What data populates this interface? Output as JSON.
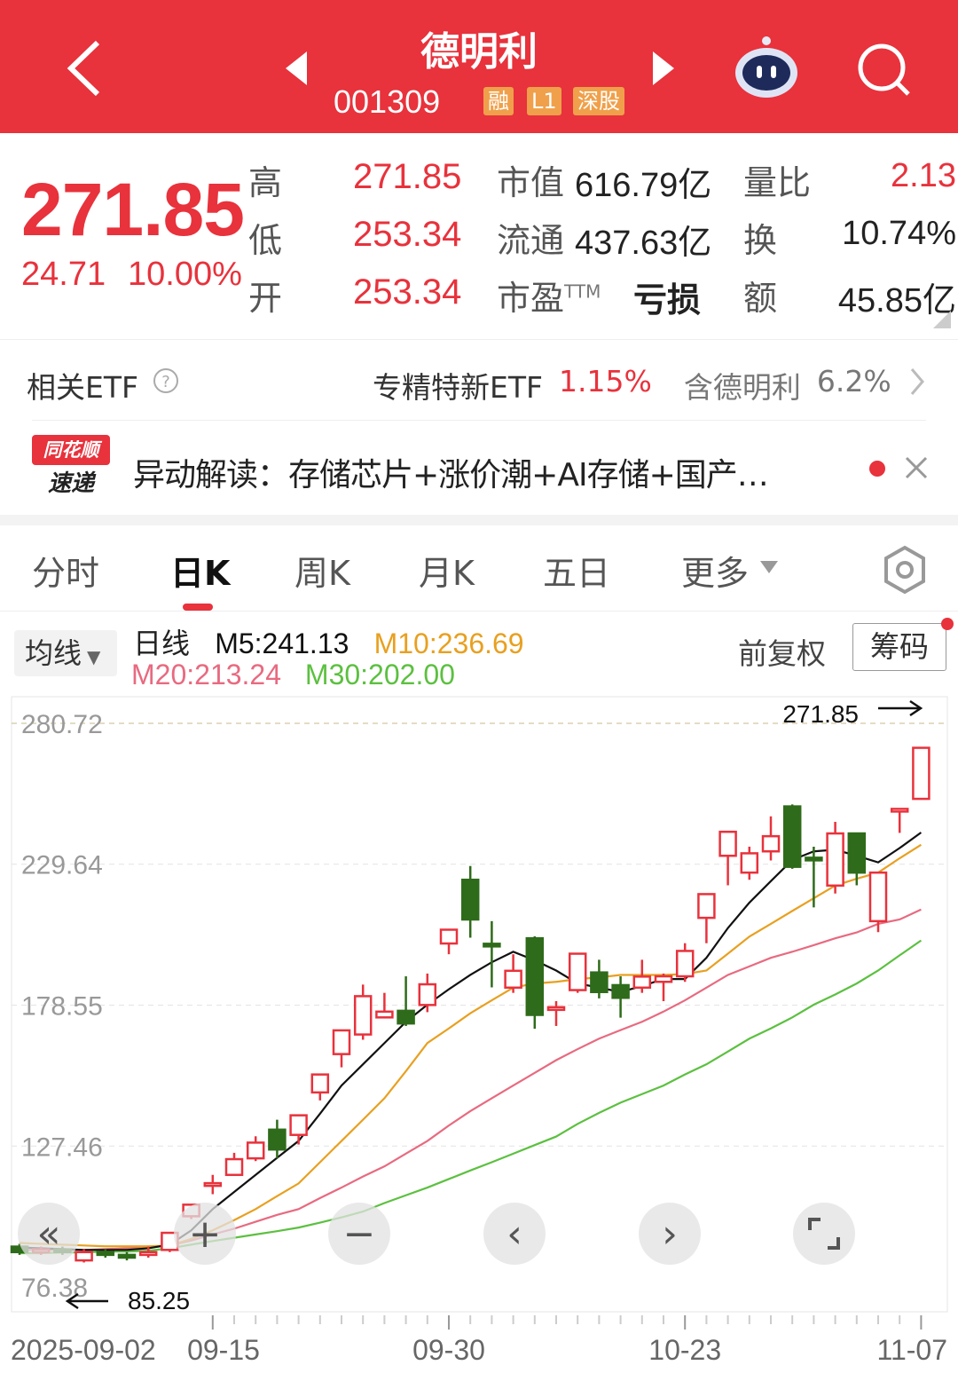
{
  "header": {
    "title": "德明利",
    "code": "001309",
    "tags": [
      "融",
      "L1",
      "深股"
    ],
    "back_icon": "chevron-left-icon",
    "prev_icon": "triangle-left-icon",
    "next_icon": "triangle-right-icon",
    "assistant_icon": "robot-icon",
    "search_icon": "search-icon"
  },
  "quote": {
    "price": "271.85",
    "change": "24.71",
    "change_pct": "10.00%",
    "rows": [
      {
        "label": "高",
        "value": "271.85",
        "k2": "市值",
        "v2": "616.79亿",
        "k3": "量比",
        "v3": "2.13"
      },
      {
        "label": "低",
        "value": "253.34",
        "k2": "流通",
        "v2": "437.63亿",
        "k3": "换",
        "v3": "10.74%"
      },
      {
        "label": "开",
        "value": "253.34",
        "k2": "市盈",
        "k2sup": "TTM",
        "v2": "亏损",
        "k3": "额",
        "v3": "45.85亿"
      }
    ]
  },
  "etf": {
    "label": "相关ETF",
    "name": "专精特新ETF",
    "pct": "1.15%",
    "contains": "含德明利",
    "weight": "6.2%"
  },
  "news": {
    "logo_top": "同花顺",
    "logo_bottom": "速递",
    "text": "异动解读：存储芯片+涨价潮+AI存储+国产…"
  },
  "tabs": [
    "分时",
    "日K",
    "周K",
    "月K",
    "五日",
    "更多"
  ],
  "active_tab": 1,
  "indicators": {
    "ma_select": "均线",
    "line_type": "日线",
    "m5": "M5:241.13",
    "m10": "M10:236.69",
    "m20": "M20:213.24",
    "m30": "M30:202.00",
    "adjust": "前复权",
    "chips": "筹码"
  },
  "colors": {
    "brand": "#e8323c",
    "up": "#e8323c",
    "down": "#2e6b1a",
    "m5": "#111111",
    "m10": "#e8a020",
    "m20": "#e86a80",
    "m30": "#5cc040"
  },
  "chart_data": {
    "type": "candlestick",
    "ylim": [
      76.38,
      280.72
    ],
    "y_ticks": [
      "280.72",
      "229.64",
      "178.55",
      "127.46",
      "76.38"
    ],
    "x_ticks": [
      {
        "label": "2025-09-02",
        "index": 0
      },
      {
        "label": "09-15",
        "index": 9
      },
      {
        "label": "09-30",
        "index": 20
      },
      {
        "label": "10-23",
        "index": 31
      },
      {
        "label": "11-07",
        "index": 42
      }
    ],
    "max_label": "271.85",
    "min_label": "85.25",
    "ohlc": [
      [
        91,
        92,
        88,
        89
      ],
      [
        89,
        91,
        88,
        90
      ],
      [
        90,
        91,
        88,
        89
      ],
      [
        86,
        90,
        85.25,
        89
      ],
      [
        89,
        90,
        87,
        88
      ],
      [
        88,
        89,
        86,
        87
      ],
      [
        88,
        91,
        87,
        89
      ],
      [
        89.8,
        96,
        89,
        96
      ],
      [
        102,
        106.2,
        101,
        106.2
      ],
      [
        114,
        117,
        110,
        114
      ],
      [
        117,
        125,
        117,
        122.7
      ],
      [
        123,
        131,
        122,
        128.7
      ],
      [
        133.4,
        137,
        123,
        126.2
      ],
      [
        131.5,
        138.6,
        128,
        138.6
      ],
      [
        146.9,
        153.4,
        144,
        153.4
      ],
      [
        160.8,
        169.4,
        156,
        169.4
      ],
      [
        167.9,
        186,
        166,
        181.8
      ],
      [
        174.1,
        183,
        174,
        176.2
      ],
      [
        176.5,
        189,
        171,
        171.9
      ],
      [
        178.6,
        190,
        176,
        186.1
      ],
      [
        200.9,
        205.9,
        197,
        205.9
      ],
      [
        224,
        229,
        203,
        209.6
      ],
      [
        200.8,
        209,
        185,
        200
      ],
      [
        184.9,
        197,
        183,
        191
      ],
      [
        202.8,
        203.5,
        170,
        175
      ],
      [
        177.8,
        180,
        171,
        177.8
      ],
      [
        184,
        197.2,
        183,
        197.2
      ],
      [
        190.4,
        195,
        181,
        183.3
      ],
      [
        185.8,
        189,
        174,
        181.2
      ],
      [
        184.9,
        195,
        183,
        188.9
      ],
      [
        187,
        190,
        180,
        189
      ],
      [
        189,
        201,
        187,
        198.2
      ],
      [
        210.2,
        218.8,
        201,
        218.8
      ],
      [
        232.7,
        241.4,
        222,
        241.4
      ],
      [
        226.6,
        236,
        224,
        233.6
      ],
      [
        234.3,
        247,
        231,
        239.8
      ],
      [
        250.6,
        251.3,
        228,
        228.7
      ],
      [
        232,
        236,
        214,
        231.5
      ],
      [
        221.9,
        245,
        219,
        240.8
      ],
      [
        240.8,
        241,
        222,
        226.6
      ],
      [
        209,
        226.6,
        205,
        226.6
      ],
      [
        248.8,
        249.7,
        241,
        249.7
      ],
      [
        253.34,
        271.85,
        253.34,
        271.85
      ]
    ],
    "ma5": [
      90.7,
      90.4,
      90.1,
      89.8,
      89.8,
      89.8,
      90.4,
      91.7,
      96.9,
      104.6,
      110.8,
      117,
      123.2,
      129.3,
      139.2,
      149.4,
      157.1,
      164.8,
      172.5,
      178.7,
      184.3,
      189.5,
      194.1,
      197.9,
      194.8,
      191.1,
      186.4,
      184.9,
      183.3,
      185.5,
      188,
      188,
      195.7,
      206.5,
      215.7,
      223.5,
      231.2,
      234.3,
      234.9,
      232.7,
      230.3,
      235.5,
      241.13
    ],
    "ma10": [
      92.3,
      92,
      91.7,
      91.4,
      91.1,
      91.1,
      91.1,
      91.4,
      93.8,
      96.9,
      100.6,
      104.6,
      109.3,
      113.9,
      121.6,
      129.3,
      137,
      144.8,
      154.6,
      164.8,
      170.1,
      175.6,
      180.3,
      184.9,
      186.4,
      187,
      188,
      188.6,
      189.5,
      189.5,
      189.5,
      189.8,
      191.1,
      197.2,
      203.4,
      208,
      212.7,
      217.3,
      221.9,
      224.4,
      226.6,
      231.8,
      236.69
    ],
    "ma20": [
      89.8,
      89.8,
      89.8,
      89.8,
      90.1,
      90.4,
      90.7,
      91.4,
      93.2,
      95.4,
      97.5,
      100,
      102.5,
      104.6,
      108.6,
      112.4,
      116.4,
      120.1,
      124.7,
      129.3,
      134.9,
      140.1,
      144.8,
      149.4,
      154,
      158.6,
      162.6,
      166.4,
      169.5,
      172.5,
      176.2,
      180.3,
      184.9,
      189.5,
      192.6,
      195.7,
      197.9,
      200.3,
      202.8,
      204.9,
      208,
      209.6,
      213.24
    ],
    "ma30": [
      88.6,
      88.6,
      88.9,
      88.9,
      89.2,
      89.2,
      89.5,
      90.4,
      91.7,
      93,
      94.2,
      95.4,
      96.6,
      97.9,
      99.7,
      101.6,
      103.7,
      106.8,
      109.6,
      112.4,
      115.5,
      118.6,
      121.6,
      124.7,
      127.8,
      130.9,
      135.5,
      139.5,
      143.2,
      146.3,
      149.4,
      153.4,
      157.1,
      161.7,
      166.4,
      170.1,
      174.1,
      178.7,
      182.4,
      186.4,
      191.1,
      196.6,
      202.0
    ]
  },
  "controls": [
    "rewind-icon",
    "zoom-in-icon",
    "zoom-out-icon",
    "chevron-left-icon",
    "chevron-right-icon",
    "fullscreen-icon"
  ]
}
